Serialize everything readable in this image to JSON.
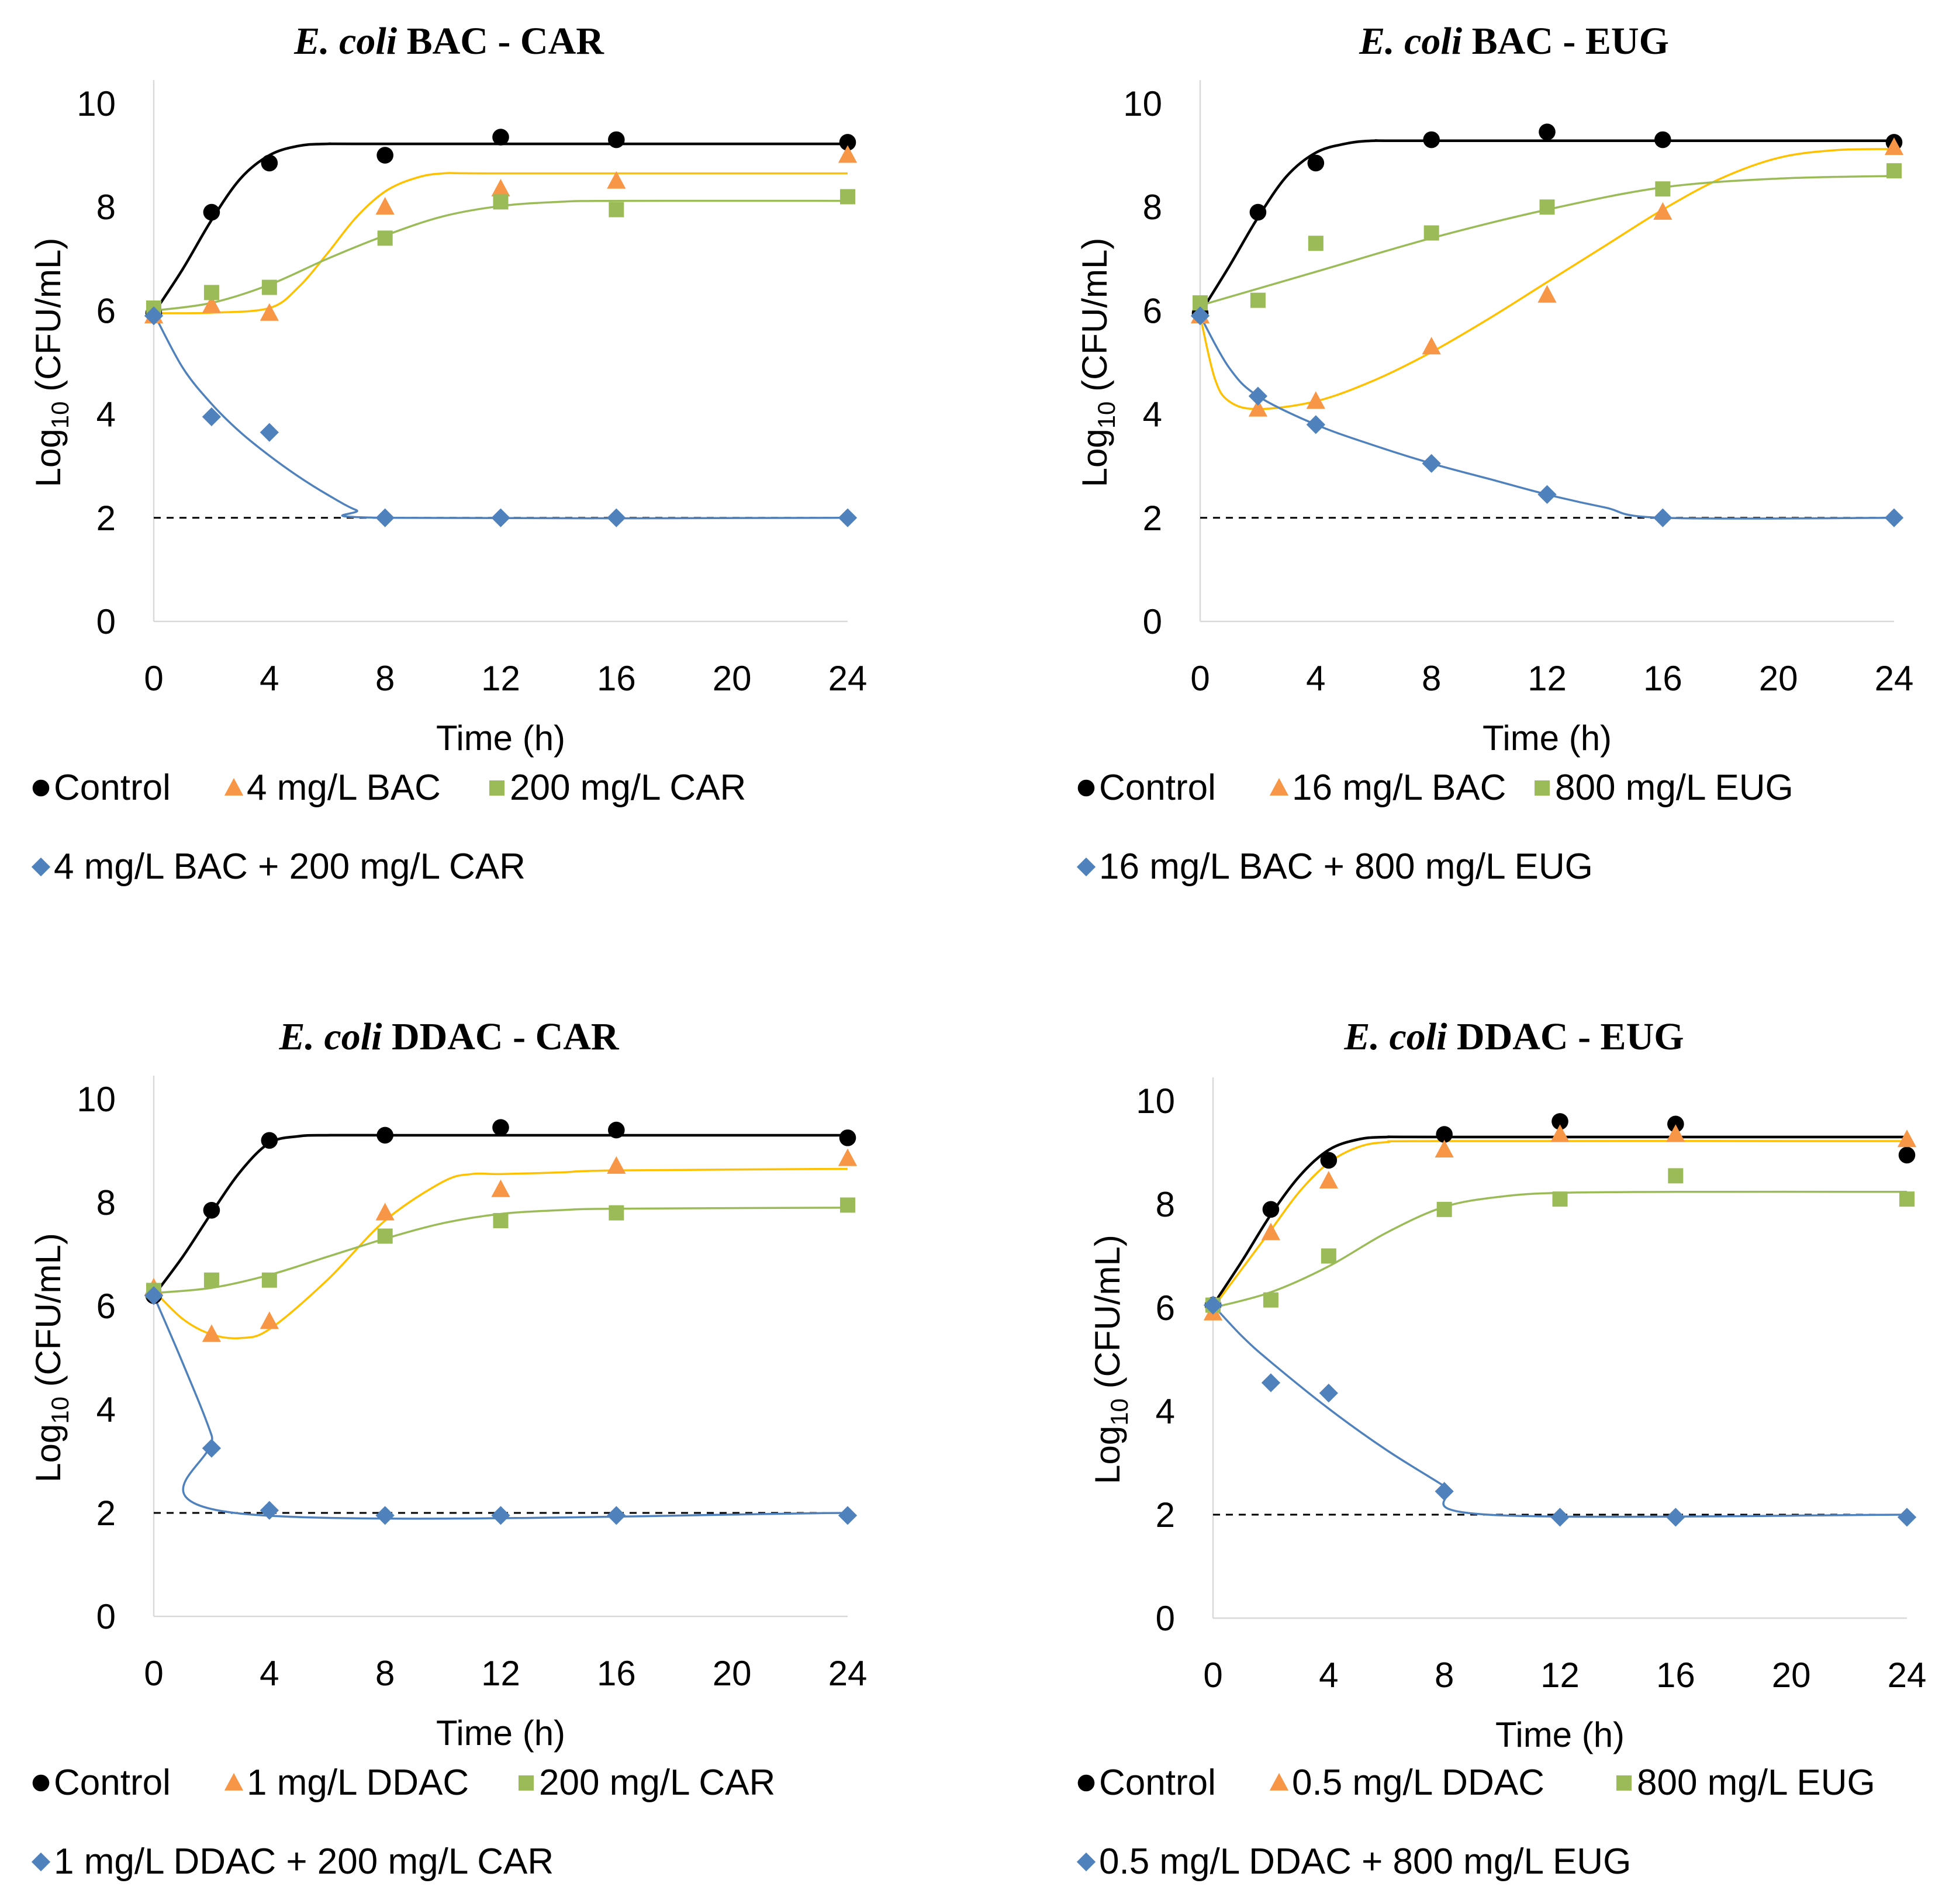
{
  "chart_data": [
    {
      "type": "scatter",
      "title_italic": "E. coli",
      "title_rest": "BAC - CAR",
      "xlabel": "Time (h)",
      "ylabel_base": "Log",
      "ylabel_sub": "10",
      "ylabel_rest": " (CFU/mL)",
      "xlim": [
        0,
        24
      ],
      "ylim": [
        0,
        10
      ],
      "xticks": [
        0,
        4,
        8,
        12,
        16,
        20,
        24
      ],
      "yticks": [
        0,
        2,
        4,
        6,
        8,
        10
      ],
      "detection_limit": 2,
      "series": [
        {
          "name": "Control",
          "color": "#000000",
          "marker": "circle",
          "x": [
            0,
            2,
            4,
            8,
            12,
            16,
            24
          ],
          "y": [
            5.95,
            7.9,
            8.85,
            9.0,
            9.35,
            9.3,
            9.25
          ],
          "fit": [
            [
              0,
              5.95
            ],
            [
              1,
              6.8
            ],
            [
              2,
              7.75
            ],
            [
              3,
              8.55
            ],
            [
              4,
              9.0
            ],
            [
              5,
              9.18
            ],
            [
              6,
              9.22
            ],
            [
              8,
              9.22
            ],
            [
              24,
              9.22
            ]
          ]
        },
        {
          "name": "4 mg/L BAC",
          "color": "#f79646",
          "marker": "triangle",
          "x": [
            0,
            2,
            4,
            8,
            12,
            16,
            24
          ],
          "y": [
            5.9,
            6.1,
            5.95,
            8.0,
            8.35,
            8.5,
            9.0
          ],
          "fit": [
            [
              0,
              5.95
            ],
            [
              2,
              5.96
            ],
            [
              4,
              6.05
            ],
            [
              5,
              6.45
            ],
            [
              6,
              7.1
            ],
            [
              7,
              7.8
            ],
            [
              8,
              8.3
            ],
            [
              9,
              8.55
            ],
            [
              10,
              8.65
            ],
            [
              12,
              8.65
            ],
            [
              24,
              8.65
            ]
          ]
        },
        {
          "name": "200 mg/L CAR",
          "color": "#9bbb59",
          "marker": "square",
          "x": [
            0,
            2,
            4,
            8,
            12,
            16,
            24
          ],
          "y": [
            6.05,
            6.35,
            6.45,
            7.4,
            8.1,
            7.95,
            8.2
          ],
          "fit": [
            [
              0,
              6.0
            ],
            [
              2,
              6.15
            ],
            [
              4,
              6.5
            ],
            [
              6,
              7.0
            ],
            [
              8,
              7.45
            ],
            [
              10,
              7.82
            ],
            [
              12,
              8.02
            ],
            [
              14,
              8.1
            ],
            [
              16,
              8.12
            ],
            [
              24,
              8.12
            ]
          ]
        },
        {
          "name": "4 mg/L BAC + 200 mg/L CAR",
          "color": "#4f81bd",
          "marker": "diamond",
          "x": [
            0,
            2,
            4,
            8,
            12,
            16,
            24
          ],
          "y": [
            5.9,
            3.95,
            3.65,
            2.0,
            2.0,
            2.0,
            2.0
          ],
          "fit": [
            [
              0,
              5.95
            ],
            [
              1,
              4.9
            ],
            [
              2,
              4.2
            ],
            [
              3,
              3.65
            ],
            [
              4,
              3.2
            ],
            [
              5,
              2.8
            ],
            [
              6,
              2.45
            ],
            [
              7,
              2.15
            ],
            [
              8,
              2.0
            ],
            [
              24,
              2.0
            ]
          ]
        }
      ]
    },
    {
      "type": "scatter",
      "title_italic": "E. coli",
      "title_rest": "BAC - EUG",
      "xlabel": "Time (h)",
      "ylabel_base": "Log",
      "ylabel_sub": "10",
      "ylabel_rest": " (CFU/mL)",
      "xlim": [
        0,
        24
      ],
      "ylim": [
        0,
        10
      ],
      "xticks": [
        0,
        4,
        8,
        12,
        16,
        20,
        24
      ],
      "yticks": [
        0,
        2,
        4,
        6,
        8,
        10
      ],
      "detection_limit": 2,
      "series": [
        {
          "name": "Control",
          "color": "#000000",
          "marker": "circle",
          "x": [
            0,
            2,
            4,
            8,
            12,
            16,
            24
          ],
          "y": [
            5.95,
            7.9,
            8.85,
            9.3,
            9.45,
            9.3,
            9.25
          ],
          "fit": [
            [
              0,
              5.95
            ],
            [
              1,
              6.85
            ],
            [
              2,
              7.8
            ],
            [
              3,
              8.6
            ],
            [
              4,
              9.05
            ],
            [
              5,
              9.22
            ],
            [
              6,
              9.28
            ],
            [
              8,
              9.28
            ],
            [
              24,
              9.28
            ]
          ]
        },
        {
          "name": "16 mg/L BAC",
          "color": "#f79646",
          "marker": "triangle",
          "x": [
            0,
            2,
            4,
            8,
            12,
            16,
            24
          ],
          "y": [
            5.9,
            4.1,
            4.25,
            5.3,
            6.3,
            7.9,
            9.15
          ],
          "fit": [
            [
              0,
              5.9
            ],
            [
              0.5,
              4.7
            ],
            [
              1,
              4.25
            ],
            [
              2,
              4.1
            ],
            [
              4,
              4.25
            ],
            [
              6,
              4.65
            ],
            [
              8,
              5.2
            ],
            [
              10,
              5.85
            ],
            [
              12,
              6.55
            ],
            [
              14,
              7.25
            ],
            [
              16,
              7.95
            ],
            [
              18,
              8.55
            ],
            [
              20,
              8.95
            ],
            [
              22,
              9.1
            ],
            [
              24,
              9.12
            ]
          ]
        },
        {
          "name": "800 mg/L EUG",
          "color": "#9bbb59",
          "marker": "square",
          "x": [
            0,
            2,
            4,
            8,
            12,
            16,
            24
          ],
          "y": [
            6.15,
            6.2,
            7.3,
            7.5,
            8.0,
            8.35,
            8.7
          ],
          "fit": [
            [
              0,
              6.1
            ],
            [
              4,
              6.75
            ],
            [
              8,
              7.4
            ],
            [
              12,
              7.95
            ],
            [
              16,
              8.38
            ],
            [
              20,
              8.55
            ],
            [
              24,
              8.6
            ]
          ]
        },
        {
          "name": "16 mg/L BAC + 800 mg/L EUG",
          "color": "#4f81bd",
          "marker": "diamond",
          "x": [
            0,
            2,
            4,
            8,
            12,
            16,
            24
          ],
          "y": [
            5.9,
            4.35,
            3.8,
            3.05,
            2.45,
            2.0,
            2.0
          ],
          "fit": [
            [
              0,
              5.9
            ],
            [
              1,
              4.9
            ],
            [
              2,
              4.35
            ],
            [
              4,
              3.8
            ],
            [
              6,
              3.4
            ],
            [
              8,
              3.05
            ],
            [
              10,
              2.75
            ],
            [
              12,
              2.45
            ],
            [
              14,
              2.2
            ],
            [
              16,
              2.0
            ],
            [
              24,
              2.0
            ]
          ]
        }
      ]
    },
    {
      "type": "scatter",
      "title_italic": "E. coli",
      "title_rest": "DDAC - CAR",
      "xlabel": "Time (h)",
      "ylabel_base": "Log",
      "ylabel_sub": "10",
      "ylabel_rest": " (CFU/mL)",
      "xlim": [
        0,
        24
      ],
      "ylim": [
        0,
        10
      ],
      "xticks": [
        0,
        4,
        8,
        12,
        16,
        20,
        24
      ],
      "yticks": [
        0,
        2,
        4,
        6,
        8,
        10
      ],
      "detection_limit": 2,
      "series": [
        {
          "name": "Control",
          "color": "#000000",
          "marker": "circle",
          "x": [
            0,
            2,
            4,
            8,
            12,
            16,
            24
          ],
          "y": [
            6.2,
            7.85,
            9.2,
            9.3,
            9.45,
            9.4,
            9.25
          ],
          "fit": [
            [
              0,
              6.2
            ],
            [
              1,
              6.95
            ],
            [
              2,
              7.8
            ],
            [
              3,
              8.6
            ],
            [
              4,
              9.15
            ],
            [
              5,
              9.28
            ],
            [
              6,
              9.3
            ],
            [
              8,
              9.3
            ],
            [
              24,
              9.3
            ]
          ]
        },
        {
          "name": "1 mg/L DDAC",
          "color": "#f79646",
          "marker": "triangle",
          "x": [
            0,
            2,
            4,
            8,
            12,
            16,
            24
          ],
          "y": [
            6.35,
            5.45,
            5.7,
            7.8,
            8.25,
            8.7,
            8.85
          ],
          "fit": [
            [
              0,
              6.3
            ],
            [
              1,
              5.75
            ],
            [
              2,
              5.45
            ],
            [
              3,
              5.38
            ],
            [
              4,
              5.55
            ],
            [
              6,
              6.5
            ],
            [
              8,
              7.65
            ],
            [
              10,
              8.4
            ],
            [
              11,
              8.55
            ],
            [
              12,
              8.55
            ],
            [
              14,
              8.58
            ],
            [
              16,
              8.62
            ],
            [
              24,
              8.65
            ]
          ]
        },
        {
          "name": "200 mg/L CAR",
          "color": "#9bbb59",
          "marker": "square",
          "x": [
            0,
            2,
            4,
            8,
            12,
            16,
            24
          ],
          "y": [
            6.3,
            6.5,
            6.5,
            7.35,
            7.65,
            7.8,
            7.95
          ],
          "fit": [
            [
              0,
              6.25
            ],
            [
              2,
              6.35
            ],
            [
              4,
              6.6
            ],
            [
              6,
              6.95
            ],
            [
              8,
              7.3
            ],
            [
              10,
              7.6
            ],
            [
              12,
              7.78
            ],
            [
              14,
              7.85
            ],
            [
              16,
              7.88
            ],
            [
              24,
              7.9
            ]
          ]
        },
        {
          "name": "1 mg/L DDAC + 200 mg/L CAR",
          "color": "#4f81bd",
          "marker": "diamond",
          "x": [
            0,
            2,
            4,
            8,
            12,
            16,
            24
          ],
          "y": [
            6.2,
            3.25,
            2.05,
            1.95,
            1.95,
            1.95,
            1.95
          ],
          "fit": [
            [
              0,
              6.2
            ],
            [
              1,
              4.9
            ],
            [
              2,
              3.5
            ],
            [
              2.8,
              2.0
            ],
            [
              24,
              2.0
            ]
          ]
        }
      ]
    },
    {
      "type": "scatter",
      "title_italic": "E. coli",
      "title_rest": "DDAC - EUG",
      "xlabel": "Time (h)",
      "ylabel_base": "Log",
      "ylabel_sub": "10",
      "ylabel_rest": " (CFU/mL)",
      "xlim": [
        0,
        24
      ],
      "ylim": [
        0,
        10
      ],
      "xticks": [
        0,
        4,
        8,
        12,
        16,
        20,
        24
      ],
      "yticks": [
        0,
        2,
        4,
        6,
        8,
        10
      ],
      "detection_limit": 2,
      "series": [
        {
          "name": "Control",
          "color": "#000000",
          "marker": "circle",
          "x": [
            0,
            2,
            4,
            8,
            12,
            16,
            24
          ],
          "y": [
            6.05,
            7.9,
            8.85,
            9.35,
            9.6,
            9.55,
            8.95
          ],
          "fit": [
            [
              0,
              6.05
            ],
            [
              1,
              6.9
            ],
            [
              2,
              7.8
            ],
            [
              3,
              8.55
            ],
            [
              4,
              9.05
            ],
            [
              5,
              9.25
            ],
            [
              6,
              9.3
            ],
            [
              8,
              9.3
            ],
            [
              24,
              9.3
            ]
          ]
        },
        {
          "name": "0.5 mg/L DDAC",
          "color": "#f79646",
          "marker": "triangle",
          "x": [
            0,
            2,
            4,
            8,
            12,
            16,
            24
          ],
          "y": [
            5.9,
            7.45,
            8.45,
            9.05,
            9.35,
            9.35,
            9.25
          ],
          "fit": [
            [
              0,
              6.0
            ],
            [
              1,
              6.75
            ],
            [
              2,
              7.5
            ],
            [
              3,
              8.25
            ],
            [
              4,
              8.8
            ],
            [
              5,
              9.1
            ],
            [
              6,
              9.2
            ],
            [
              8,
              9.22
            ],
            [
              24,
              9.22
            ]
          ]
        },
        {
          "name": "800 mg/L EUG",
          "color": "#9bbb59",
          "marker": "square",
          "x": [
            0,
            2,
            4,
            8,
            12,
            16,
            24
          ],
          "y": [
            6.05,
            6.15,
            7.0,
            7.9,
            8.1,
            8.55,
            8.1
          ],
          "fit": [
            [
              0,
              6.0
            ],
            [
              2,
              6.3
            ],
            [
              4,
              6.8
            ],
            [
              6,
              7.45
            ],
            [
              8,
              7.95
            ],
            [
              10,
              8.15
            ],
            [
              12,
              8.22
            ],
            [
              16,
              8.24
            ],
            [
              24,
              8.24
            ]
          ]
        },
        {
          "name": "0.5 mg/L DDAC + 800 mg/L EUG",
          "color": "#4f81bd",
          "marker": "diamond",
          "x": [
            0,
            2,
            4,
            8,
            12,
            16,
            24
          ],
          "y": [
            6.05,
            4.55,
            4.35,
            2.45,
            1.95,
            1.95,
            1.95
          ],
          "fit": [
            [
              0,
              6.05
            ],
            [
              1,
              5.45
            ],
            [
              2,
              4.95
            ],
            [
              4,
              4.05
            ],
            [
              6,
              3.25
            ],
            [
              8,
              2.55
            ],
            [
              9.5,
              2.0
            ],
            [
              24,
              2.0
            ]
          ]
        }
      ]
    }
  ]
}
